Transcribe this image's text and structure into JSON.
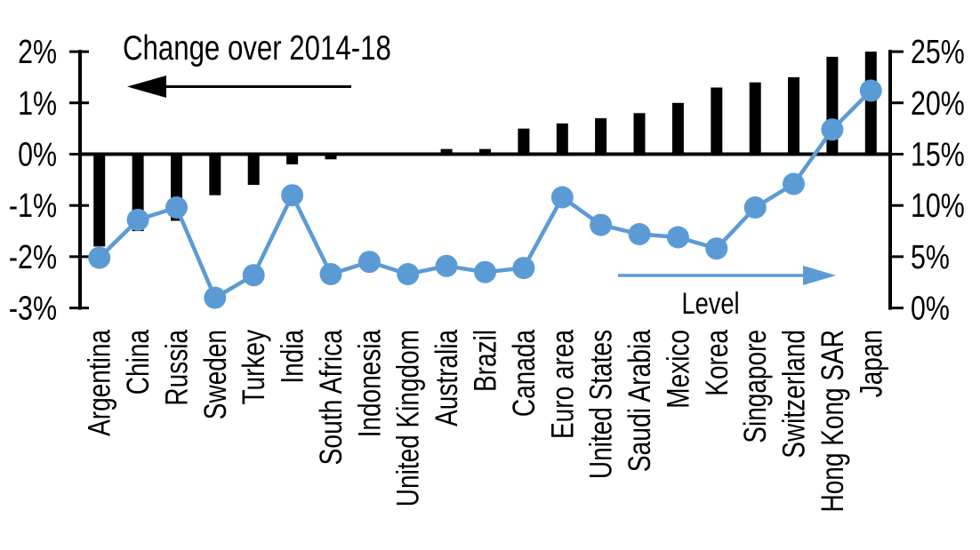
{
  "chart_data": {
    "type": "combo_bar_line_dual_axis",
    "categories": [
      "Argentina",
      "China",
      "Russia",
      "Sweden",
      "Turkey",
      "India",
      "South Africa",
      "Indonesia",
      "United Kingdom",
      "Australia",
      "Brazil",
      "Canada",
      "Euro area",
      "United States",
      "Saudi Arabia",
      "Mexico",
      "Korea",
      "Singapore",
      "Switzerland",
      "Hong Kong SAR",
      "Japan"
    ],
    "series": [
      {
        "name": "Change over 2014-18",
        "type": "bar",
        "axis": "left",
        "color": "#000000",
        "values": [
          -1.8,
          -1.5,
          -1.3,
          -0.8,
          -0.6,
          -0.2,
          -0.1,
          0.0,
          0.0,
          0.1,
          0.1,
          0.5,
          0.6,
          0.7,
          0.8,
          1.0,
          1.3,
          1.4,
          1.5,
          1.9,
          2.0
        ]
      },
      {
        "name": "Level",
        "type": "line",
        "axis": "right",
        "color": "#5B9BD5",
        "values": [
          4.9,
          8.6,
          9.8,
          1.0,
          3.2,
          11.0,
          3.3,
          4.5,
          3.3,
          4.1,
          3.5,
          3.9,
          10.8,
          8.1,
          7.2,
          6.9,
          5.8,
          9.8,
          12.1,
          17.4,
          21.2
        ]
      }
    ],
    "left_axis": {
      "tick_labels": [
        "2%",
        "1%",
        "0%",
        "-1%",
        "-2%",
        "-3%"
      ],
      "min": -3,
      "max": 2,
      "grid": false
    },
    "right_axis": {
      "tick_labels": [
        "25%",
        "20%",
        "15%",
        "10%",
        "5%",
        "0%"
      ],
      "min": 0,
      "max": 25,
      "grid": false
    },
    "annotations": {
      "bar_series_label": "Change over 2014-18",
      "bar_series_arrow_direction": "left",
      "line_series_label": "Level",
      "line_series_arrow_direction": "right"
    }
  }
}
